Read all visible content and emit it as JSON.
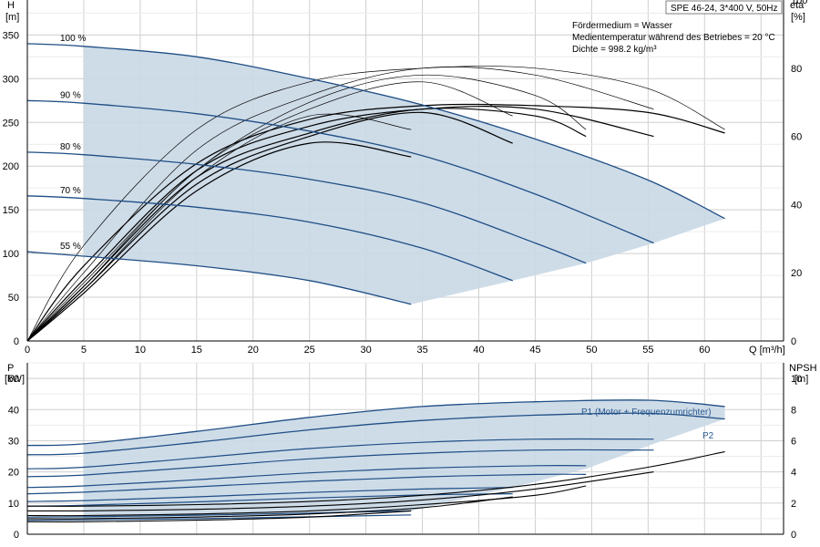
{
  "chart_data": [
    {
      "type": "line",
      "title": "SPE 46-24, 3*400 V, 50Hz",
      "xlabel": "Q [m³/h]",
      "ylabel_unit_name": "H",
      "ylabel_unit": "[m]",
      "y2label_name": "eta",
      "y2label_unit": "[%]",
      "xlim": [
        0,
        67
      ],
      "ylim": [
        0,
        390
      ],
      "y2lim": [
        0,
        100
      ],
      "x_ticks": [
        0,
        5,
        10,
        15,
        20,
        25,
        30,
        35,
        40,
        45,
        50,
        55,
        60
      ],
      "x_tick_labels": [
        "0",
        "5",
        "10",
        "15",
        "20",
        "25",
        "30",
        "35",
        "40",
        "45",
        "50",
        "55",
        "60"
      ],
      "y_ticks": [
        0,
        50,
        100,
        150,
        200,
        250,
        300,
        350
      ],
      "y_tick_labels": [
        "0",
        "50",
        "100",
        "150",
        "200",
        "250",
        "300",
        "350"
      ],
      "y2_ticks": [
        0,
        20,
        40,
        60,
        80,
        100
      ],
      "y2_tick_labels": [
        "0",
        "20",
        "40",
        "60",
        "80",
        "100"
      ],
      "grid": true,
      "info_lines": [
        "Fördermedium = Wasser",
        "Medientemperatur während des Betriebes = 20 °C",
        "Dichte = 998.2 kg/m³"
      ],
      "operating_area": {
        "upper": [
          [
            5,
            337
          ],
          [
            15,
            325
          ],
          [
            25,
            300
          ],
          [
            35,
            270
          ],
          [
            45,
            231
          ],
          [
            55,
            184
          ],
          [
            61.8,
            140
          ]
        ],
        "lower": [
          [
            5,
            97
          ],
          [
            15,
            86
          ],
          [
            25,
            69
          ],
          [
            34,
            42
          ],
          [
            43,
            69
          ],
          [
            49.5,
            89
          ],
          [
            55.5,
            112
          ],
          [
            61.8,
            140
          ]
        ]
      },
      "series": [
        {
          "name": "100 %",
          "kind": "H",
          "x": [
            0,
            5,
            15,
            25,
            35,
            45,
            55,
            61.8
          ],
          "y": [
            340,
            337,
            325,
            300,
            270,
            231,
            184,
            140
          ]
        },
        {
          "name": "90 %",
          "kind": "H",
          "x": [
            0,
            5,
            15,
            25,
            35,
            45,
            55.5
          ],
          "y": [
            275,
            272,
            260,
            240,
            212,
            168,
            112
          ]
        },
        {
          "name": "80 %",
          "kind": "H",
          "x": [
            0,
            5,
            15,
            25,
            35,
            45,
            49.5
          ],
          "y": [
            216,
            213,
            202,
            185,
            158,
            112,
            89
          ]
        },
        {
          "name": "70 %",
          "kind": "H",
          "x": [
            0,
            5,
            15,
            25,
            35,
            43
          ],
          "y": [
            166,
            163,
            153,
            136,
            106,
            69
          ]
        },
        {
          "name": "55 %",
          "kind": "H",
          "x": [
            0,
            5,
            15,
            25,
            34
          ],
          "y": [
            102,
            97,
            86,
            69,
            42
          ]
        }
      ],
      "eta_curves": [
        {
          "x": [
            0,
            5,
            15,
            25,
            35,
            45,
            55,
            61.8
          ],
          "y": [
            0,
            28,
            62,
            76,
            80,
            80,
            74,
            62
          ]
        },
        {
          "x": [
            0,
            5,
            15,
            25,
            35,
            45,
            55,
            61.8
          ],
          "y": [
            0,
            22,
            52,
            65,
            69,
            69,
            67,
            61
          ]
        },
        {
          "x": [
            0,
            5,
            15,
            25,
            35,
            45,
            55.5
          ],
          "y": [
            0,
            20,
            56,
            72,
            80,
            78,
            68
          ]
        },
        {
          "x": [
            0,
            5,
            15,
            25,
            35,
            45,
            55.5
          ],
          "y": [
            0,
            18,
            50,
            63,
            68,
            68,
            60
          ]
        },
        {
          "x": [
            0,
            5,
            15,
            25,
            35,
            45,
            49.5
          ],
          "y": [
            0,
            17,
            50,
            70,
            78,
            72,
            62
          ]
        },
        {
          "x": [
            0,
            5,
            15,
            25,
            35,
            45,
            49.5
          ],
          "y": [
            0,
            16,
            48,
            61,
            68,
            66,
            60
          ]
        },
        {
          "x": [
            0,
            5,
            15,
            25,
            35,
            43
          ],
          "y": [
            0,
            16,
            50,
            68,
            76,
            66
          ]
        },
        {
          "x": [
            0,
            5,
            15,
            25,
            35,
            43
          ],
          "y": [
            0,
            15,
            46,
            60,
            67,
            58
          ]
        },
        {
          "x": [
            0,
            5,
            15,
            25,
            34
          ],
          "y": [
            0,
            15,
            48,
            66,
            62
          ]
        },
        {
          "x": [
            0,
            5,
            15,
            25,
            34
          ],
          "y": [
            0,
            14,
            44,
            58,
            54
          ]
        }
      ]
    },
    {
      "type": "line",
      "xlabel": "",
      "ylabel_unit_name": "P",
      "ylabel_unit": "[kW]",
      "y2label_name": "NPSH",
      "y2label_unit": "[m]",
      "xlim": [
        0,
        67
      ],
      "ylim": [
        0,
        55
      ],
      "y2lim": [
        0,
        11
      ],
      "y_ticks": [
        0,
        10,
        20,
        30,
        40,
        50
      ],
      "y_tick_labels": [
        "0",
        "10",
        "20",
        "30",
        "40",
        "50"
      ],
      "y2_ticks": [
        0,
        2,
        4,
        6,
        8,
        10
      ],
      "y2_tick_labels": [
        "0",
        "2",
        "4",
        "6",
        "8",
        "10"
      ],
      "grid": true,
      "operating_area": {
        "upper": [
          [
            5,
            29
          ],
          [
            15,
            33
          ],
          [
            25,
            37.5
          ],
          [
            35,
            41
          ],
          [
            45,
            42.5
          ],
          [
            55,
            43
          ],
          [
            61.8,
            41
          ]
        ],
        "lower": [
          [
            5,
            5
          ],
          [
            15,
            5.5
          ],
          [
            25,
            6.5
          ],
          [
            34,
            7.5
          ],
          [
            43,
            15
          ],
          [
            49.5,
            21
          ],
          [
            55.5,
            29
          ],
          [
            61.8,
            37
          ]
        ]
      },
      "series": [
        {
          "name": "P1 (Motor + Frequenzumrichter)",
          "kind": "P1",
          "x": [
            0,
            5,
            15,
            25,
            35,
            45,
            55,
            61.8
          ],
          "y": [
            28.5,
            29,
            33,
            37.5,
            41,
            42.5,
            43,
            41
          ]
        },
        {
          "name": "P2",
          "kind": "P2",
          "x": [
            0,
            5,
            15,
            25,
            35,
            45,
            55,
            61.8
          ],
          "y": [
            25.5,
            26,
            29.5,
            33.5,
            36.5,
            38.2,
            38.8,
            37
          ]
        }
      ],
      "extra_p_curves": [
        {
          "x": [
            0,
            5,
            15,
            25,
            35,
            45,
            55.5
          ],
          "y": [
            21,
            21.5,
            24.5,
            27.5,
            29.5,
            30.5,
            30.5
          ]
        },
        {
          "x": [
            0,
            5,
            15,
            25,
            35,
            45,
            55.5
          ],
          "y": [
            18.5,
            19,
            21.5,
            24.2,
            26,
            27,
            27
          ]
        },
        {
          "x": [
            0,
            5,
            15,
            25,
            35,
            45,
            49.5
          ],
          "y": [
            15,
            15.5,
            17.5,
            19.7,
            21.2,
            22,
            22
          ]
        },
        {
          "x": [
            0,
            5,
            15,
            25,
            35,
            45,
            49.5
          ],
          "y": [
            13,
            13.5,
            15.2,
            17,
            18.4,
            19.2,
            19.2
          ]
        },
        {
          "x": [
            0,
            5,
            15,
            25,
            35,
            43
          ],
          "y": [
            10.5,
            10.8,
            12,
            13.4,
            14.5,
            15
          ]
        },
        {
          "x": [
            0,
            5,
            15,
            25,
            35,
            43
          ],
          "y": [
            9,
            9.3,
            10.4,
            11.6,
            12.6,
            13
          ]
        },
        {
          "x": [
            0,
            5,
            15,
            25,
            34
          ],
          "y": [
            5.5,
            5.6,
            6.1,
            6.8,
            7.5
          ]
        },
        {
          "x": [
            0,
            5,
            15,
            25,
            34
          ],
          "y": [
            4.5,
            4.6,
            5,
            5.6,
            6.2
          ]
        }
      ],
      "npsh_curves": [
        {
          "x": [
            0,
            5,
            15,
            25,
            35,
            45,
            55,
            61.8
          ],
          "y": [
            1.8,
            1.8,
            1.9,
            2.1,
            2.5,
            3.2,
            4.3,
            5.3
          ]
        },
        {
          "x": [
            0,
            5,
            15,
            25,
            35,
            45,
            55.5
          ],
          "y": [
            1.5,
            1.5,
            1.6,
            1.8,
            2.2,
            2.9,
            4.0
          ]
        },
        {
          "x": [
            0,
            5,
            15,
            25,
            35,
            45,
            49.5
          ],
          "y": [
            1.2,
            1.2,
            1.3,
            1.5,
            1.9,
            2.5,
            3.1
          ]
        },
        {
          "x": [
            0,
            5,
            15,
            25,
            35,
            43
          ],
          "y": [
            1.0,
            1.0,
            1.1,
            1.3,
            1.7,
            2.4
          ]
        },
        {
          "x": [
            0,
            5,
            15,
            25,
            34
          ],
          "y": [
            0.8,
            0.8,
            0.9,
            1.1,
            1.5
          ]
        }
      ]
    }
  ]
}
